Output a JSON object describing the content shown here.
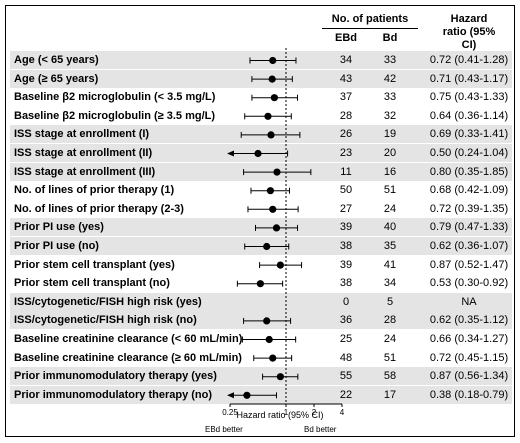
{
  "headers": {
    "patients": "No. of patients",
    "ebd": "EBd",
    "bd": "Bd",
    "hazard": "Hazard ratio (95% CI)"
  },
  "axis": {
    "label": "Hazard ratio (95% CI)",
    "left_note": "EBd better",
    "right_note": "Bd better"
  },
  "chart_data": {
    "type": "forest",
    "xscale": "log",
    "xlim": [
      0.25,
      4
    ],
    "reference_line": 1,
    "xticks": [
      0.25,
      1,
      2,
      4
    ],
    "xtick_labels": [
      "0.25",
      "1",
      "2",
      "4"
    ],
    "xlabel": "Hazard ratio (95% CI)",
    "rows": [
      {
        "label": "Age (< 65 years)",
        "ebd": "34",
        "bd": "33",
        "hr_text": "0.72 (0.41-1.28)",
        "hr": 0.72,
        "lo": 0.41,
        "hi": 1.28,
        "shade": true,
        "arrow_left": false
      },
      {
        "label": "Age (≥ 65 years)",
        "ebd": "43",
        "bd": "42",
        "hr_text": "0.71 (0.43-1.17)",
        "hr": 0.71,
        "lo": 0.43,
        "hi": 1.17,
        "shade": true,
        "arrow_left": false
      },
      {
        "label": "Baseline β2 microglobulin (< 3.5 mg/L)",
        "ebd": "37",
        "bd": "33",
        "hr_text": "0.75 (0.43-1.33)",
        "hr": 0.75,
        "lo": 0.43,
        "hi": 1.33,
        "shade": false,
        "arrow_left": false
      },
      {
        "label": "Baseline β2 microglobulin (≥ 3.5 mg/L)",
        "ebd": "28",
        "bd": "32",
        "hr_text": "0.64 (0.36-1.14)",
        "hr": 0.64,
        "lo": 0.36,
        "hi": 1.14,
        "shade": false,
        "arrow_left": false
      },
      {
        "label": "ISS stage at enrollment (I)",
        "ebd": "26",
        "bd": "19",
        "hr_text": "0.69 (0.33-1.41)",
        "hr": 0.69,
        "lo": 0.33,
        "hi": 1.41,
        "shade": true,
        "arrow_left": false
      },
      {
        "label": "ISS stage at enrollment (II)",
        "ebd": "23",
        "bd": "20",
        "hr_text": "0.50 (0.24-1.04)",
        "hr": 0.5,
        "lo": 0.24,
        "hi": 1.04,
        "shade": true,
        "arrow_left": true
      },
      {
        "label": "ISS stage at enrollment (III)",
        "ebd": "11",
        "bd": "16",
        "hr_text": "0.80 (0.35-1.85)",
        "hr": 0.8,
        "lo": 0.35,
        "hi": 1.85,
        "shade": true,
        "arrow_left": false
      },
      {
        "label": "No. of lines of prior therapy (1)",
        "ebd": "50",
        "bd": "51",
        "hr_text": "0.68 (0.42-1.09)",
        "hr": 0.68,
        "lo": 0.42,
        "hi": 1.09,
        "shade": false,
        "arrow_left": false
      },
      {
        "label": "No. of lines of prior therapy (2-3)",
        "ebd": "27",
        "bd": "24",
        "hr_text": "0.72 (0.39-1.35)",
        "hr": 0.72,
        "lo": 0.39,
        "hi": 1.35,
        "shade": false,
        "arrow_left": false
      },
      {
        "label": "Prior PI use (yes)",
        "ebd": "39",
        "bd": "40",
        "hr_text": "0.79 (0.47-1.33)",
        "hr": 0.79,
        "lo": 0.47,
        "hi": 1.33,
        "shade": true,
        "arrow_left": false
      },
      {
        "label": "Prior PI use (no)",
        "ebd": "38",
        "bd": "35",
        "hr_text": "0.62 (0.36-1.07)",
        "hr": 0.62,
        "lo": 0.36,
        "hi": 1.07,
        "shade": true,
        "arrow_left": false
      },
      {
        "label": "Prior stem cell transplant (yes)",
        "ebd": "39",
        "bd": "41",
        "hr_text": "0.87 (0.52-1.47)",
        "hr": 0.87,
        "lo": 0.52,
        "hi": 1.47,
        "shade": false,
        "arrow_left": false
      },
      {
        "label": "Prior stem cell transplant (no)",
        "ebd": "38",
        "bd": "34",
        "hr_text": "0.53 (0.30-0.92)",
        "hr": 0.53,
        "lo": 0.3,
        "hi": 0.92,
        "shade": false,
        "arrow_left": false
      },
      {
        "label": "ISS/cytogenetic/FISH high risk (yes)",
        "ebd": "0",
        "bd": "5",
        "hr_text": "NA",
        "hr": null,
        "lo": null,
        "hi": null,
        "shade": true,
        "arrow_left": false
      },
      {
        "label": "ISS/cytogenetic/FISH high risk (no)",
        "ebd": "36",
        "bd": "28",
        "hr_text": "0.62 (0.35-1.12)",
        "hr": 0.62,
        "lo": 0.35,
        "hi": 1.12,
        "shade": true,
        "arrow_left": false
      },
      {
        "label": "Baseline creatinine clearance (< 60 mL/min)",
        "ebd": "25",
        "bd": "24",
        "hr_text": "0.66 (0.34-1.27)",
        "hr": 0.66,
        "lo": 0.34,
        "hi": 1.27,
        "shade": false,
        "arrow_left": false
      },
      {
        "label": "Baseline creatinine clearance (≥ 60 mL/min)",
        "ebd": "48",
        "bd": "51",
        "hr_text": "0.72 (0.45-1.15)",
        "hr": 0.72,
        "lo": 0.45,
        "hi": 1.15,
        "shade": false,
        "arrow_left": false
      },
      {
        "label": "Prior immunomodulatory therapy (yes)",
        "ebd": "55",
        "bd": "58",
        "hr_text": "0.87 (0.56-1.34)",
        "hr": 0.87,
        "lo": 0.56,
        "hi": 1.34,
        "shade": true,
        "arrow_left": false
      },
      {
        "label": "Prior immunomodulatory therapy (no)",
        "ebd": "22",
        "bd": "17",
        "hr_text": "0.38 (0.18-0.79)",
        "hr": 0.38,
        "lo": 0.18,
        "hi": 0.79,
        "shade": true,
        "arrow_left": true
      }
    ]
  }
}
